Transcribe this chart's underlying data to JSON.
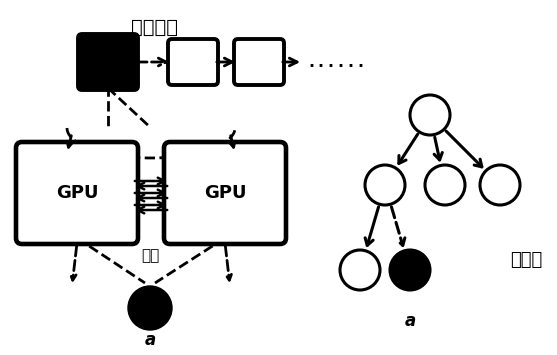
{
  "bg_color": "#ffffff",
  "title_text": "任务队列",
  "sync_text": "同步",
  "vocab_tree_text": "词汇树",
  "label_a_left": "a",
  "label_a_right": "a",
  "gpu_text": "GPU",
  "dots_text": "......",
  "figsize": [
    5.57,
    3.55
  ],
  "dpi": 100
}
